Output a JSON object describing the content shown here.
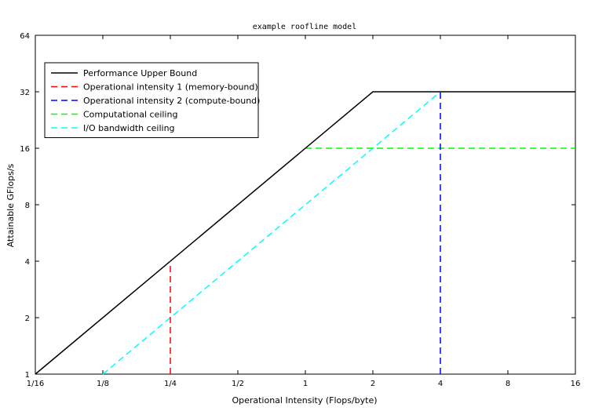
{
  "chart_data": {
    "type": "line",
    "title": "example roofline model",
    "xlabel": "Operational Intensity (Flops/byte)",
    "ylabel": "Attainable GFlops/s",
    "x_scale": "log2",
    "y_scale": "log2",
    "xlim": [
      0.0625,
      16
    ],
    "ylim": [
      1,
      64
    ],
    "x_ticks": [
      {
        "value": 0.0625,
        "label": "1/16"
      },
      {
        "value": 0.125,
        "label": "1/8"
      },
      {
        "value": 0.25,
        "label": "1/4"
      },
      {
        "value": 0.5,
        "label": "1/2"
      },
      {
        "value": 1,
        "label": "1"
      },
      {
        "value": 2,
        "label": "2"
      },
      {
        "value": 4,
        "label": "4"
      },
      {
        "value": 8,
        "label": "8"
      },
      {
        "value": 16,
        "label": "16"
      }
    ],
    "y_ticks": [
      {
        "value": 1,
        "label": "1"
      },
      {
        "value": 2,
        "label": "2"
      },
      {
        "value": 4,
        "label": "4"
      },
      {
        "value": 8,
        "label": "8"
      },
      {
        "value": 16,
        "label": "16"
      },
      {
        "value": 32,
        "label": "32"
      },
      {
        "value": 64,
        "label": "64"
      }
    ],
    "grid": false,
    "legend_position": "top-left",
    "series": [
      {
        "name": "Performance Upper Bound",
        "color": "#000000",
        "dash": "solid",
        "x": [
          0.0625,
          2,
          16
        ],
        "y": [
          1,
          32,
          32
        ]
      },
      {
        "name": "Operational intensity 1 (memory-bound)",
        "color": "#ff0000",
        "dash": "dashed",
        "x": [
          0.25,
          0.25
        ],
        "y": [
          1,
          4
        ]
      },
      {
        "name": "Operational intensity 2 (compute-bound)",
        "color": "#0000ff",
        "dash": "dashed",
        "x": [
          4,
          4
        ],
        "y": [
          1,
          32
        ]
      },
      {
        "name": "Computational ceiling",
        "color": "#00ff00",
        "dash": "dashed",
        "x": [
          1,
          16
        ],
        "y": [
          16,
          16
        ]
      },
      {
        "name": "I/O bandwidth ceiling",
        "color": "#00ffff",
        "dash": "dashed",
        "x": [
          0.125,
          4
        ],
        "y": [
          1,
          32
        ]
      }
    ]
  }
}
